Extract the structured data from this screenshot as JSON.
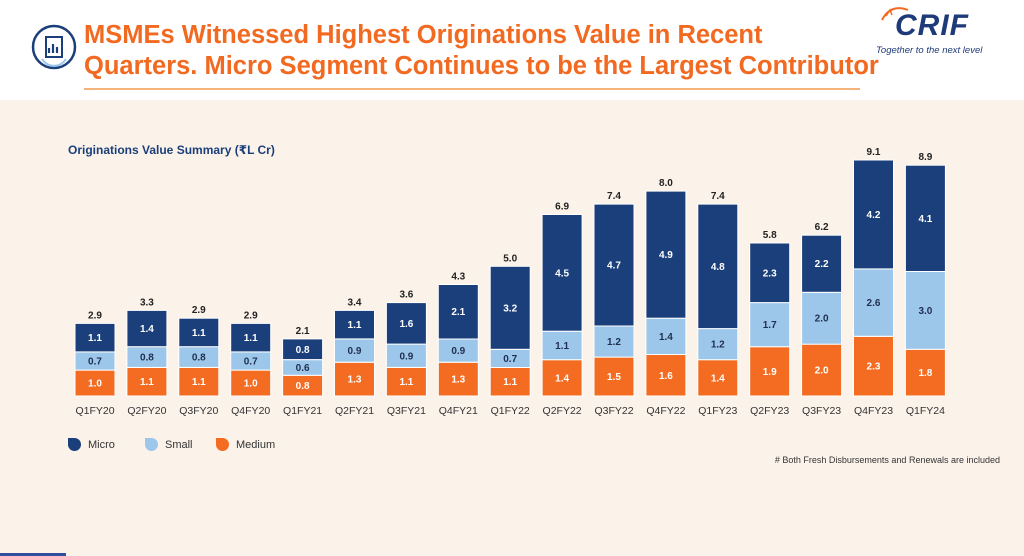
{
  "header": {
    "title_line1": "MSMEs Witnessed Highest Originations Value in Recent",
    "title_line2": "Quarters. Micro Segment Continues to be the Largest Contributor",
    "logo_text": "CRIF",
    "logo_tagline": "Together to the next level",
    "icon": "chart-report-icon"
  },
  "colors": {
    "title": "#f26a21",
    "micro": "#1b3f7a",
    "small": "#9dc7ea",
    "medium": "#f36c21",
    "label_dark": "#222222"
  },
  "chart_data": {
    "type": "stacked-bar",
    "title": "Originations Value Summary (₹L Cr)",
    "categories": [
      "Q1FY20",
      "Q2FY20",
      "Q3FY20",
      "Q4FY20",
      "Q1FY21",
      "Q2FY21",
      "Q3FY21",
      "Q4FY21",
      "Q1FY22",
      "Q2FY22",
      "Q3FY22",
      "Q4FY22",
      "Q1FY23",
      "Q2FY23",
      "Q3FY23",
      "Q4FY23",
      "Q1FY24"
    ],
    "series": [
      {
        "name": "Medium",
        "values": [
          1.0,
          1.1,
          1.1,
          1.0,
          0.8,
          1.3,
          1.1,
          1.3,
          1.1,
          1.4,
          1.5,
          1.6,
          1.4,
          1.9,
          2.0,
          2.3,
          1.8
        ]
      },
      {
        "name": "Small",
        "values": [
          0.7,
          0.8,
          0.8,
          0.7,
          0.6,
          0.9,
          0.9,
          0.9,
          0.7,
          1.1,
          1.2,
          1.4,
          1.2,
          1.7,
          2.0,
          2.6,
          3.0
        ]
      },
      {
        "name": "Micro",
        "values": [
          1.1,
          1.4,
          1.1,
          1.1,
          0.8,
          1.1,
          1.6,
          2.1,
          3.2,
          4.5,
          4.7,
          4.9,
          4.8,
          2.3,
          2.2,
          4.2,
          4.1
        ]
      }
    ],
    "totals": [
      2.9,
      3.3,
      2.9,
      2.9,
      2.1,
      3.4,
      3.6,
      4.3,
      5.0,
      6.9,
      7.4,
      8.0,
      7.4,
      5.8,
      6.2,
      9.1,
      8.9
    ],
    "legend": [
      {
        "name": "Micro",
        "series": "Micro"
      },
      {
        "name": "Small",
        "series": "Small"
      },
      {
        "name": "Medium",
        "series": "Medium"
      }
    ],
    "ylim": [
      0,
      9.1
    ],
    "grid": false
  },
  "footnote": "# Both Fresh Disbursements and Renewals are included"
}
